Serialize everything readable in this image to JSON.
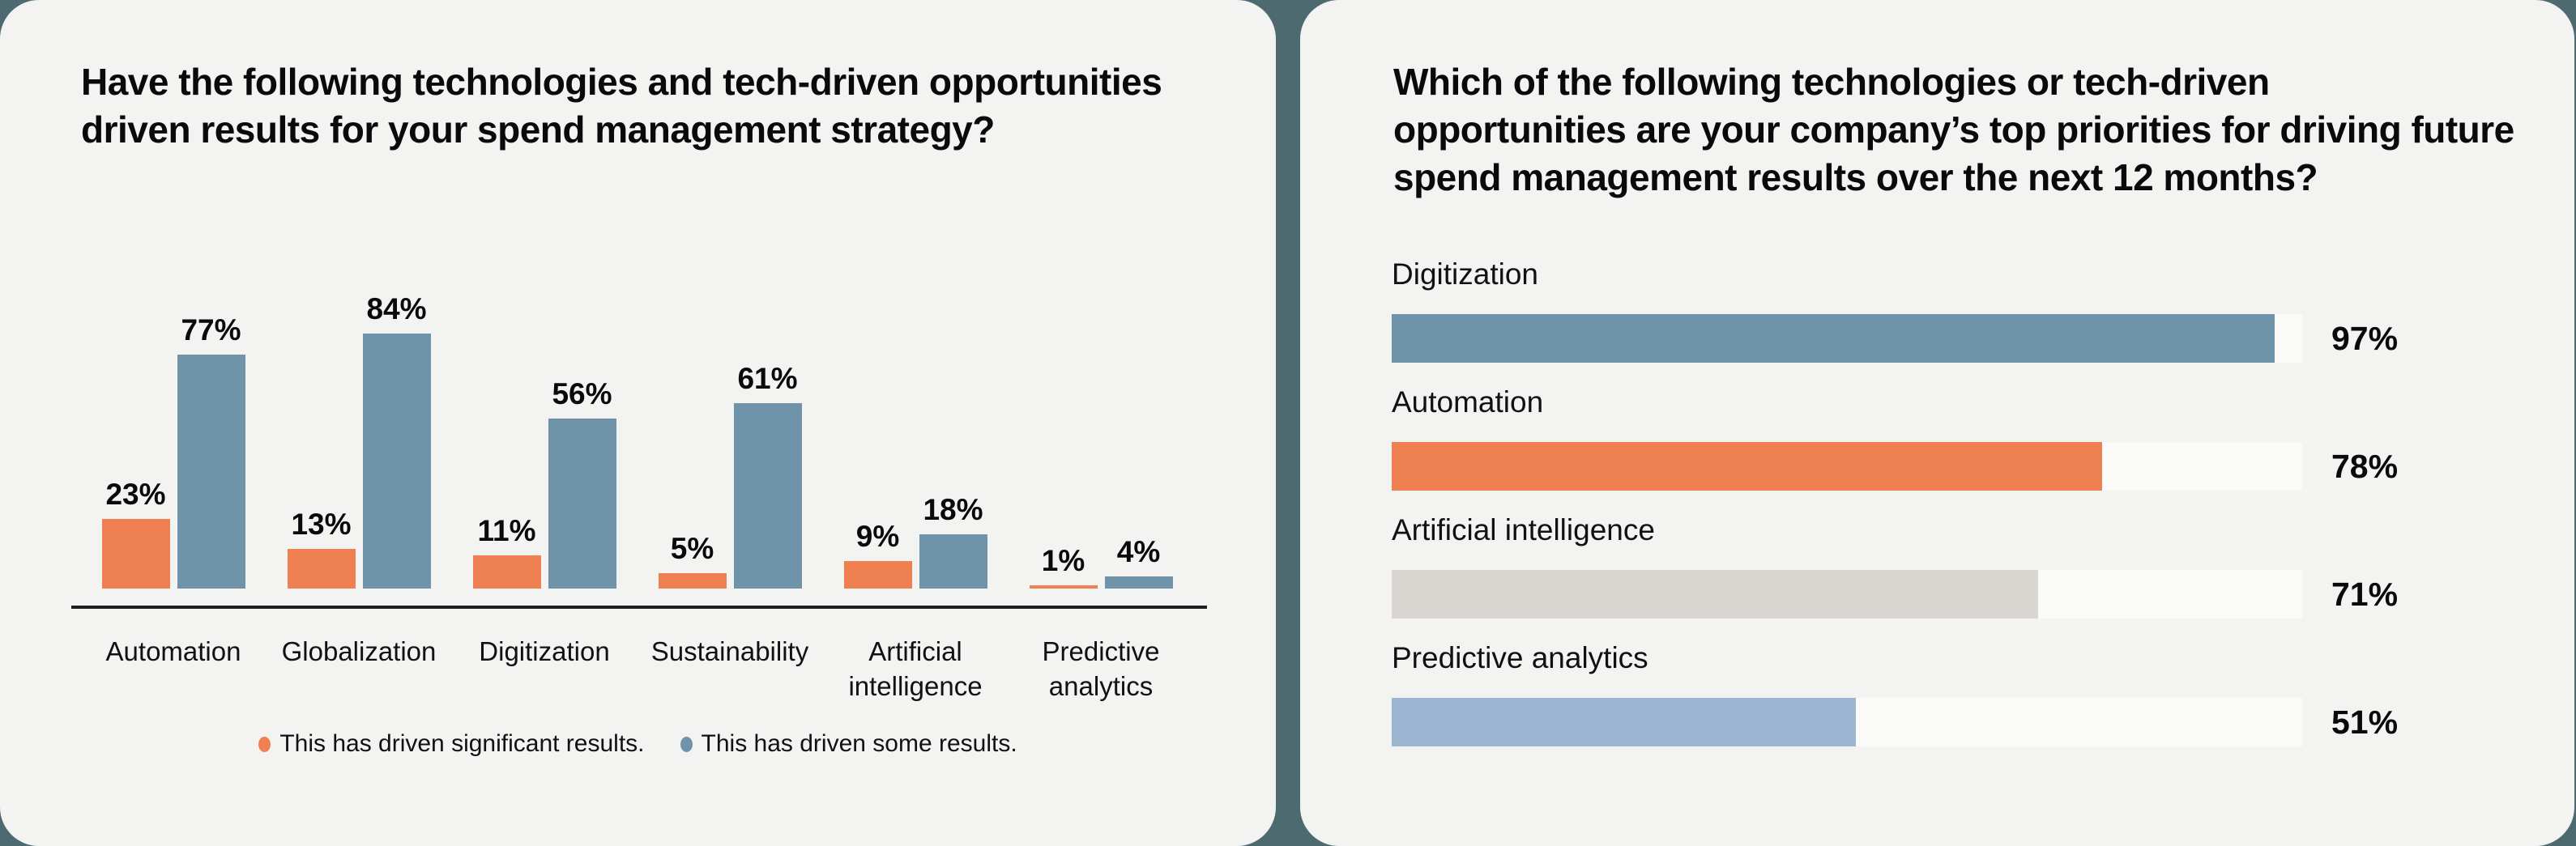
{
  "page": {
    "background": "#4D6A70",
    "panel_background": "#F3F3F2"
  },
  "chart_data": [
    {
      "type": "bar",
      "orientation": "vertical",
      "title": "Have the following technologies and tech-driven opportunities driven results for your spend management strategy?",
      "title_lines": [
        "Have the following technologies and tech-driven opportunities",
        "driven results for your spend management strategy?"
      ],
      "categories": [
        "Automation",
        "Globalization",
        "Digitization",
        "Sustainability",
        "Artificial intelligence",
        "Predictive analytics"
      ],
      "series": [
        {
          "name": "This has driven significant results.",
          "color": "#EE8052",
          "values": [
            23,
            13,
            11,
            5,
            9,
            1
          ]
        },
        {
          "name": "This has driven some results.",
          "color": "#6F94A9",
          "values": [
            77,
            84,
            56,
            61,
            18,
            4
          ]
        }
      ],
      "unit": "%",
      "ylim": [
        0,
        100
      ],
      "grid": false,
      "value_labels": true,
      "legend_position": "bottom"
    },
    {
      "type": "bar",
      "orientation": "horizontal",
      "title": "Which of the following technologies or tech-driven opportunities are your company’s top priorities for driving future spend management results over the next 12 months?",
      "title_lines": [
        "Which of the following technologies or tech-driven",
        "opportunities are your company’s top priorities for driving future",
        "spend management results over the next 12 months?"
      ],
      "categories": [
        "Digitization",
        "Automation",
        "Artificial intelligence",
        "Predictive analytics"
      ],
      "values": [
        97,
        78,
        71,
        51
      ],
      "bar_colors": [
        "#6F94A9",
        "#EE8052",
        "#D9D5D0",
        "#9CB5D1"
      ],
      "track_color": "#FAFAF9",
      "xlim": [
        0,
        100
      ],
      "unit": "%",
      "grid": false,
      "value_labels": true
    }
  ]
}
